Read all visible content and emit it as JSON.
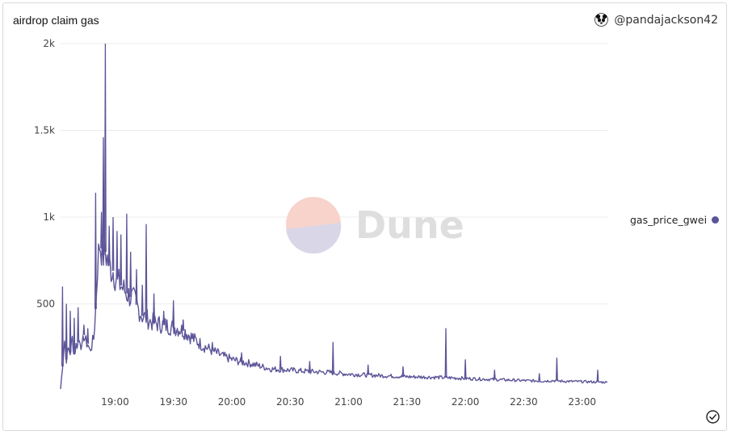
{
  "header": {
    "title": "airdrop claim gas",
    "author": "@pandajackson42"
  },
  "watermark": {
    "text": "Dune"
  },
  "legend": {
    "label": "gas_price_gwei",
    "color": "#5b5498"
  },
  "chart_data": {
    "type": "line",
    "title": "airdrop claim gas",
    "xlabel": "",
    "ylabel": "",
    "ylim": [
      0,
      2000
    ],
    "xlim": [
      "18:32",
      "23:13"
    ],
    "grid": true,
    "legend_position": "right",
    "y_ticks": [
      {
        "value": 500,
        "label": "500"
      },
      {
        "value": 1000,
        "label": "1k"
      },
      {
        "value": 1500,
        "label": "1.5k"
      },
      {
        "value": 2000,
        "label": "2k"
      }
    ],
    "x_ticks": [
      "19:00",
      "19:30",
      "20:00",
      "20:30",
      "21:00",
      "21:30",
      "22:00",
      "22:30",
      "23:00"
    ],
    "series": [
      {
        "name": "gas_price_gwei",
        "color": "#5b5498",
        "points": [
          [
            "18:32",
            10
          ],
          [
            "18:33",
            140
          ],
          [
            "18:34",
            290
          ],
          [
            "18:35",
            180
          ],
          [
            "18:36",
            240
          ],
          [
            "18:37",
            220
          ],
          [
            "18:38",
            300
          ],
          [
            "18:39",
            210
          ],
          [
            "18:40",
            260
          ],
          [
            "18:41",
            280
          ],
          [
            "18:42",
            300
          ],
          [
            "18:43",
            240
          ],
          [
            "18:44",
            320
          ],
          [
            "18:45",
            280
          ],
          [
            "18:46",
            270
          ],
          [
            "18:47",
            230
          ],
          [
            "18:48",
            260
          ],
          [
            "18:49",
            300
          ],
          [
            "18:50",
            470
          ],
          [
            "18:51",
            720
          ],
          [
            "18:52",
            850
          ],
          [
            "18:53",
            820
          ],
          [
            "18:54",
            780
          ],
          [
            "18:55",
            800
          ],
          [
            "18:56",
            760
          ],
          [
            "18:57",
            720
          ],
          [
            "18:58",
            700
          ],
          [
            "18:59",
            690
          ],
          [
            "19:00",
            660
          ],
          [
            "19:02",
            620
          ],
          [
            "19:04",
            590
          ],
          [
            "19:06",
            560
          ],
          [
            "19:08",
            540
          ],
          [
            "19:10",
            520
          ],
          [
            "19:12",
            470
          ],
          [
            "19:14",
            430
          ],
          [
            "19:16",
            420
          ],
          [
            "19:18",
            400
          ],
          [
            "19:20",
            390
          ],
          [
            "19:24",
            380
          ],
          [
            "19:28",
            370
          ],
          [
            "19:32",
            360
          ],
          [
            "19:36",
            340
          ],
          [
            "19:40",
            300
          ],
          [
            "19:45",
            260
          ],
          [
            "19:50",
            230
          ],
          [
            "19:55",
            200
          ],
          [
            "20:00",
            180
          ],
          [
            "20:05",
            165
          ],
          [
            "20:10",
            155
          ],
          [
            "20:15",
            140
          ],
          [
            "20:20",
            125
          ],
          [
            "20:30",
            118
          ],
          [
            "20:40",
            110
          ],
          [
            "20:50",
            105
          ],
          [
            "21:00",
            95
          ],
          [
            "21:10",
            90
          ],
          [
            "21:20",
            85
          ],
          [
            "21:30",
            80
          ],
          [
            "21:40",
            78
          ],
          [
            "21:50",
            75
          ],
          [
            "22:00",
            70
          ],
          [
            "22:10",
            66
          ],
          [
            "22:20",
            62
          ],
          [
            "22:30",
            58
          ],
          [
            "22:40",
            55
          ],
          [
            "22:45",
            58
          ],
          [
            "22:50",
            54
          ],
          [
            "23:00",
            52
          ],
          [
            "23:13",
            48
          ]
        ],
        "spikes": [
          [
            "18:33",
            600
          ],
          [
            "18:35",
            500
          ],
          [
            "18:37",
            460
          ],
          [
            "18:39",
            420
          ],
          [
            "18:41",
            480
          ],
          [
            "18:44",
            380
          ],
          [
            "18:46",
            360
          ],
          [
            "18:50",
            1140
          ],
          [
            "18:53",
            1030
          ],
          [
            "18:54",
            1460
          ],
          [
            "18:55",
            2000
          ],
          [
            "18:57",
            950
          ],
          [
            "18:59",
            1000
          ],
          [
            "19:01",
            920
          ],
          [
            "19:03",
            900
          ],
          [
            "19:06",
            1020
          ],
          [
            "19:08",
            800
          ],
          [
            "19:11",
            700
          ],
          [
            "19:14",
            610
          ],
          [
            "19:16",
            960
          ],
          [
            "19:20",
            560
          ],
          [
            "19:25",
            460
          ],
          [
            "19:30",
            520
          ],
          [
            "19:35",
            410
          ],
          [
            "19:40",
            330
          ],
          [
            "19:50",
            280
          ],
          [
            "20:05",
            220
          ],
          [
            "20:25",
            200
          ],
          [
            "20:40",
            170
          ],
          [
            "20:52",
            280
          ],
          [
            "21:10",
            150
          ],
          [
            "21:28",
            140
          ],
          [
            "21:50",
            360
          ],
          [
            "22:00",
            180
          ],
          [
            "22:15",
            120
          ],
          [
            "22:38",
            100
          ],
          [
            "22:47",
            190
          ],
          [
            "23:08",
            120
          ]
        ]
      }
    ]
  }
}
